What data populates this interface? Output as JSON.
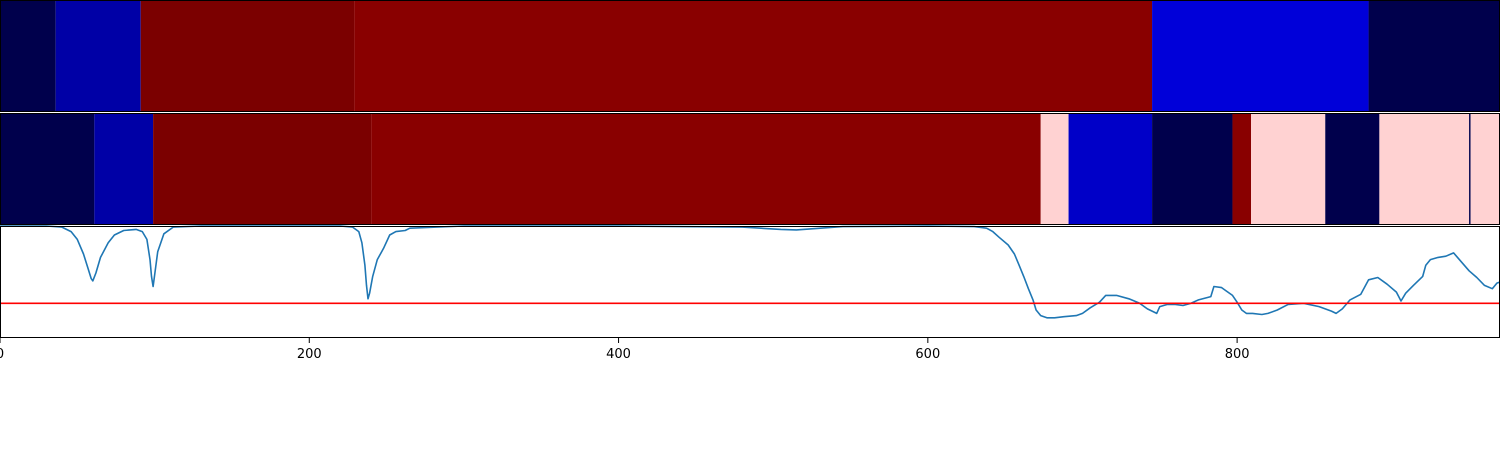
{
  "chart_data": {
    "type": "heatmap",
    "x_range": [
      0,
      970
    ],
    "xticks": [
      0,
      200,
      400,
      600,
      800
    ],
    "tracks": [
      {
        "segments": [
          {
            "start": 0,
            "end": 36,
            "color": "#00004c"
          },
          {
            "start": 36,
            "end": 91,
            "color": "#0000a6"
          },
          {
            "start": 91,
            "end": 229,
            "color": "#7b0000"
          },
          {
            "start": 229,
            "end": 745,
            "color": "#890000"
          },
          {
            "start": 745,
            "end": 885,
            "color": "#0000d9"
          },
          {
            "start": 885,
            "end": 970,
            "color": "#00004c"
          }
        ]
      },
      {
        "segments": [
          {
            "start": 0,
            "end": 61,
            "color": "#00004c"
          },
          {
            "start": 61,
            "end": 99,
            "color": "#0000a6"
          },
          {
            "start": 99,
            "end": 240,
            "color": "#7b0000"
          },
          {
            "start": 240,
            "end": 673,
            "color": "#890000"
          },
          {
            "start": 673,
            "end": 691,
            "color": "#ffd2d2"
          },
          {
            "start": 691,
            "end": 745,
            "color": "#0000c8"
          },
          {
            "start": 745,
            "end": 797,
            "color": "#00004c"
          },
          {
            "start": 797,
            "end": 809,
            "color": "#890000"
          },
          {
            "start": 809,
            "end": 857,
            "color": "#ffd2d2"
          },
          {
            "start": 857,
            "end": 892,
            "color": "#00004c"
          },
          {
            "start": 892,
            "end": 950,
            "color": "#ffd2d2"
          },
          {
            "start": 950,
            "end": 951,
            "color": "#00004c"
          },
          {
            "start": 951,
            "end": 970,
            "color": "#ffd2d2"
          }
        ]
      }
    ],
    "line": {
      "color": "#1f77b4",
      "ylim": [
        0,
        1
      ],
      "points": [
        [
          0,
          1.0
        ],
        [
          30,
          1.0
        ],
        [
          40,
          0.99
        ],
        [
          46,
          0.95
        ],
        [
          50,
          0.88
        ],
        [
          54,
          0.75
        ],
        [
          57,
          0.62
        ],
        [
          59,
          0.53
        ],
        [
          60,
          0.51
        ],
        [
          62,
          0.58
        ],
        [
          65,
          0.72
        ],
        [
          70,
          0.85
        ],
        [
          74,
          0.92
        ],
        [
          80,
          0.96
        ],
        [
          88,
          0.97
        ],
        [
          92,
          0.95
        ],
        [
          95,
          0.88
        ],
        [
          97,
          0.7
        ],
        [
          98,
          0.55
        ],
        [
          99,
          0.46
        ],
        [
          100,
          0.56
        ],
        [
          102,
          0.77
        ],
        [
          106,
          0.93
        ],
        [
          112,
          0.99
        ],
        [
          130,
          1.0
        ],
        [
          220,
          1.0
        ],
        [
          228,
          0.99
        ],
        [
          232,
          0.95
        ],
        [
          234,
          0.85
        ],
        [
          236,
          0.65
        ],
        [
          237,
          0.47
        ],
        [
          238,
          0.35
        ],
        [
          239,
          0.4
        ],
        [
          241,
          0.55
        ],
        [
          244,
          0.7
        ],
        [
          248,
          0.8
        ],
        [
          252,
          0.92
        ],
        [
          256,
          0.95
        ],
        [
          262,
          0.96
        ],
        [
          265,
          0.98
        ],
        [
          300,
          1.0
        ],
        [
          400,
          1.0
        ],
        [
          480,
          0.99
        ],
        [
          505,
          0.97
        ],
        [
          515,
          0.965
        ],
        [
          525,
          0.975
        ],
        [
          545,
          0.995
        ],
        [
          600,
          1.0
        ],
        [
          630,
          0.995
        ],
        [
          638,
          0.98
        ],
        [
          642,
          0.95
        ],
        [
          646,
          0.9
        ],
        [
          652,
          0.83
        ],
        [
          656,
          0.75
        ],
        [
          659,
          0.65
        ],
        [
          662,
          0.55
        ],
        [
          665,
          0.44
        ],
        [
          668,
          0.34
        ],
        [
          670,
          0.25
        ],
        [
          673,
          0.2
        ],
        [
          677,
          0.18
        ],
        [
          682,
          0.18
        ],
        [
          688,
          0.19
        ],
        [
          696,
          0.2
        ],
        [
          700,
          0.22
        ],
        [
          705,
          0.27
        ],
        [
          711,
          0.32
        ],
        [
          715,
          0.38
        ],
        [
          722,
          0.38
        ],
        [
          730,
          0.35
        ],
        [
          737,
          0.31
        ],
        [
          742,
          0.26
        ],
        [
          745,
          0.24
        ],
        [
          748,
          0.22
        ],
        [
          750,
          0.28
        ],
        [
          755,
          0.3
        ],
        [
          760,
          0.3
        ],
        [
          765,
          0.29
        ],
        [
          770,
          0.31
        ],
        [
          775,
          0.34
        ],
        [
          783,
          0.37
        ],
        [
          785,
          0.46
        ],
        [
          790,
          0.45
        ],
        [
          793,
          0.42
        ],
        [
          797,
          0.38
        ],
        [
          800,
          0.32
        ],
        [
          803,
          0.25
        ],
        [
          806,
          0.22
        ],
        [
          810,
          0.22
        ],
        [
          816,
          0.21
        ],
        [
          820,
          0.22
        ],
        [
          826,
          0.25
        ],
        [
          833,
          0.3
        ],
        [
          843,
          0.31
        ],
        [
          853,
          0.28
        ],
        [
          861,
          0.24
        ],
        [
          864,
          0.22
        ],
        [
          868,
          0.26
        ],
        [
          873,
          0.34
        ],
        [
          880,
          0.39
        ],
        [
          885,
          0.52
        ],
        [
          891,
          0.54
        ],
        [
          897,
          0.48
        ],
        [
          903,
          0.41
        ],
        [
          906,
          0.33
        ],
        [
          909,
          0.4
        ],
        [
          914,
          0.47
        ],
        [
          920,
          0.55
        ],
        [
          922,
          0.65
        ],
        [
          925,
          0.7
        ],
        [
          930,
          0.72
        ],
        [
          935,
          0.73
        ],
        [
          940,
          0.76
        ],
        [
          945,
          0.68
        ],
        [
          950,
          0.6
        ],
        [
          955,
          0.54
        ],
        [
          960,
          0.47
        ],
        [
          965,
          0.44
        ],
        [
          968,
          0.49
        ],
        [
          970,
          0.5
        ]
      ]
    },
    "threshold": {
      "value": 0.31,
      "color": "#ff0000"
    }
  }
}
